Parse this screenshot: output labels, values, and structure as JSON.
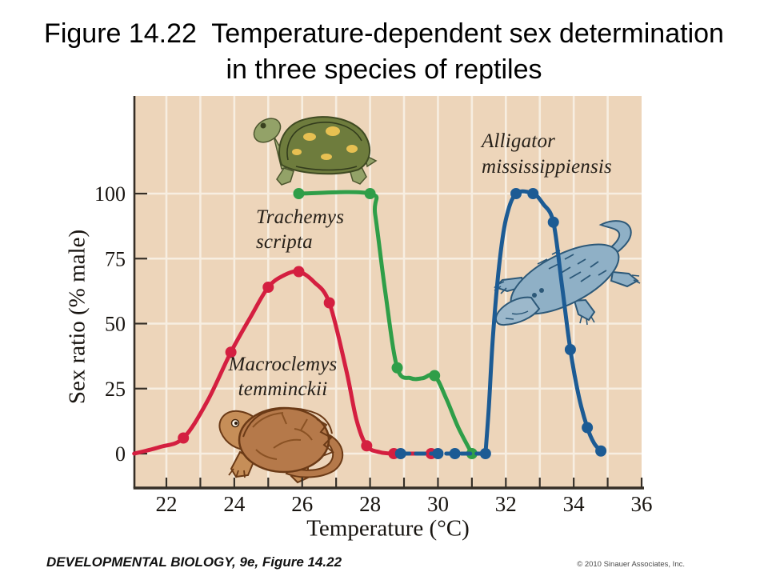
{
  "title": {
    "line1": "Figure 14.22  Temperature-dependent sex determination",
    "line2": "in three species of reptiles"
  },
  "footer": {
    "left": "DEVELOPMENTAL BIOLOGY, 9e, Figure 14.22",
    "right": "© 2010 Sinauer Associates, Inc."
  },
  "colors": {
    "plot_bg": "#edd5ba",
    "gridline": "#f7eee1",
    "axis": "#352e26",
    "red": "#d41f40",
    "green": "#2f9e48",
    "blue": "#1c5b94"
  },
  "chart_data": {
    "type": "line",
    "title": "Temperature-dependent sex determination in three species of reptiles",
    "xlabel": "Temperature (°C)",
    "ylabel": "Sex ratio (% male)",
    "xlim": [
      21,
      36
    ],
    "ylim": [
      0,
      135
    ],
    "grid": "on",
    "x_axis": {
      "labeled_ticks": [
        22,
        24,
        26,
        28,
        30,
        32,
        34,
        36
      ],
      "minor_tick_every": 1,
      "grid_from": 22,
      "grid_to": 35,
      "tick_from": 22,
      "tick_to": 36
    },
    "y_axis": {
      "ticks": [
        0,
        25,
        50,
        75,
        100
      ]
    },
    "series": [
      {
        "id": "macroclemys",
        "name": "Macroclemys temminckii",
        "label_lines": [
          "Macroclemys",
          "temminckii"
        ],
        "color_key": "red",
        "data_points": [
          [
            22.5,
            6
          ],
          [
            23.9,
            39
          ],
          [
            25.0,
            64
          ],
          [
            25.9,
            70
          ],
          [
            26.8,
            58
          ],
          [
            27.9,
            3
          ],
          [
            28.7,
            0
          ],
          [
            29.8,
            0
          ]
        ],
        "segments": [
          {
            "dashed": false,
            "curve_points": [
              [
                21.05,
                0
              ],
              [
                21.8,
                2.5
              ],
              [
                22.5,
                6
              ],
              [
                23.2,
                20
              ],
              [
                23.9,
                39
              ],
              [
                24.5,
                53
              ],
              [
                25.0,
                64
              ],
              [
                25.45,
                68.5
              ],
              [
                25.9,
                70
              ],
              [
                26.35,
                66
              ],
              [
                26.8,
                58
              ],
              [
                27.3,
                32
              ],
              [
                27.6,
                13
              ],
              [
                27.9,
                3
              ],
              [
                28.3,
                0.5
              ],
              [
                28.7,
                0
              ]
            ]
          },
          {
            "dashed": true,
            "curve_points": [
              [
                28.7,
                0
              ],
              [
                29.8,
                0
              ]
            ]
          }
        ]
      },
      {
        "id": "trachemys",
        "name": "Trachemys scripta",
        "label_lines": [
          "Trachemys",
          "scripta"
        ],
        "color_key": "green",
        "data_points": [
          [
            25.9,
            100
          ],
          [
            28.0,
            100
          ],
          [
            28.8,
            33
          ],
          [
            29.9,
            30
          ],
          [
            31.0,
            0
          ]
        ],
        "segments": [
          {
            "dashed": false,
            "curve_points": [
              [
                25.9,
                100
              ],
              [
                28.0,
                100
              ],
              [
                28.15,
                92
              ],
              [
                28.45,
                62
              ],
              [
                28.8,
                33
              ],
              [
                29.2,
                29
              ],
              [
                29.55,
                29
              ],
              [
                29.9,
                30
              ],
              [
                30.25,
                21
              ],
              [
                30.6,
                10
              ],
              [
                31.0,
                0
              ]
            ]
          }
        ]
      },
      {
        "id": "alligator",
        "name": "Alligator mississippiensis",
        "label_lines": [
          "Alligator",
          "mississippiensis"
        ],
        "color_key": "blue",
        "data_points": [
          [
            28.9,
            0
          ],
          [
            30.0,
            0
          ],
          [
            30.5,
            0
          ],
          [
            31.4,
            0
          ],
          [
            32.3,
            100
          ],
          [
            32.8,
            100
          ],
          [
            33.4,
            89
          ],
          [
            33.9,
            40
          ],
          [
            34.4,
            10
          ],
          [
            34.8,
            1
          ]
        ],
        "segments": [
          {
            "dashed": true,
            "curve_points": [
              [
                28.9,
                0
              ],
              [
                31.4,
                0
              ]
            ]
          },
          {
            "dashed": false,
            "curve_points": [
              [
                31.4,
                0
              ],
              [
                31.5,
                18
              ],
              [
                31.62,
                45
              ],
              [
                31.8,
                72
              ],
              [
                32.0,
                90
              ],
              [
                32.3,
                100
              ],
              [
                32.8,
                100
              ],
              [
                33.1,
                96
              ],
              [
                33.4,
                89
              ],
              [
                33.65,
                65
              ],
              [
                33.9,
                40
              ],
              [
                34.15,
                22
              ],
              [
                34.4,
                10
              ],
              [
                34.6,
                4
              ],
              [
                34.8,
                1
              ]
            ]
          }
        ]
      }
    ]
  }
}
